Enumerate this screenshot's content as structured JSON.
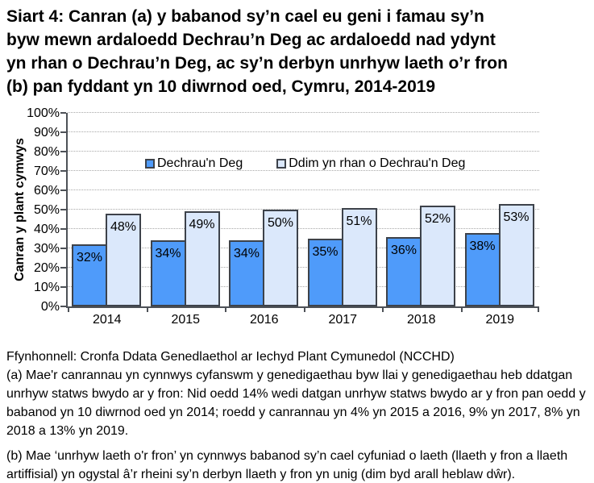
{
  "window": {
    "background": "#ffffff"
  },
  "title": {
    "lines": [
      "Siart 4: Canran (a) y babanod sy’n cael eu geni i famau sy’n",
      "byw mewn ardaloedd Dechrau’n Deg ac ardaloedd nad ydynt",
      "yn rhan o Dechrau’n Deg, ac sy’n derbyn unrhyw laeth o’r fron",
      "(b) pan fyddant yn 10 diwrnod oed, Cymru, 2014-2019"
    ]
  },
  "chart_data": {
    "type": "bar",
    "categories": [
      "2014",
      "2015",
      "2016",
      "2017",
      "2018",
      "2019"
    ],
    "series": [
      {
        "name": "Dechrau'n Deg",
        "color": "#4f9bfa",
        "values": [
          32,
          34,
          34,
          35,
          36,
          38
        ],
        "value_labels": [
          "32%",
          "34%",
          "34%",
          "35%",
          "36%",
          "38%"
        ]
      },
      {
        "name": "Ddim yn rhan o Dechrau'n Deg",
        "color": "#dbe8fb",
        "values": [
          48,
          49,
          50,
          51,
          52,
          53
        ],
        "value_labels": [
          "48%",
          "49%",
          "50%",
          "51%",
          "52%",
          "53%"
        ]
      }
    ],
    "ylabel": "Canran y plant cymwys",
    "xlabel": "",
    "ylim": [
      0,
      100
    ],
    "ytick_step": 10,
    "ytick_labels": [
      "0%",
      "10%",
      "20%",
      "30%",
      "40%",
      "50%",
      "60%",
      "70%",
      "80%",
      "90%",
      "100%"
    ],
    "grid": "horizontal-dotted",
    "legend_position": "inside-top-center",
    "bar_border_color": "#3d424a",
    "axis_color": "#4d5157",
    "gridline_color": "#a8a8a8"
  },
  "footer": {
    "source": "Ffynhonnell: Cronfa Ddata Genedlaethol ar Iechyd Plant Cymunedol (NCCHD)",
    "note_a": "(a) Mae'r canrannau yn cynnwys cyfanswm y genedigaethau byw llai y genedigaethau heb ddatgan unrhyw statws bwydo ar y fron: Nid oedd 14% wedi datgan unrhyw statws bwydo ar y fron pan oedd y babanod yn 10 diwrnod oed yn 2014; roedd y canrannau yn 4% yn 2015 a 2016, 9% yn 2017, 8% yn 2018 a 13% yn 2019.",
    "note_b": "(b) Mae ‘unrhyw laeth o'r fron’ yn cynnwys babanod sy’n cael cyfuniad o laeth (llaeth y fron a llaeth artiffisial) yn ogystal â’r rheini sy’n derbyn llaeth y fron yn unig (dim byd arall heblaw dŵr)."
  }
}
